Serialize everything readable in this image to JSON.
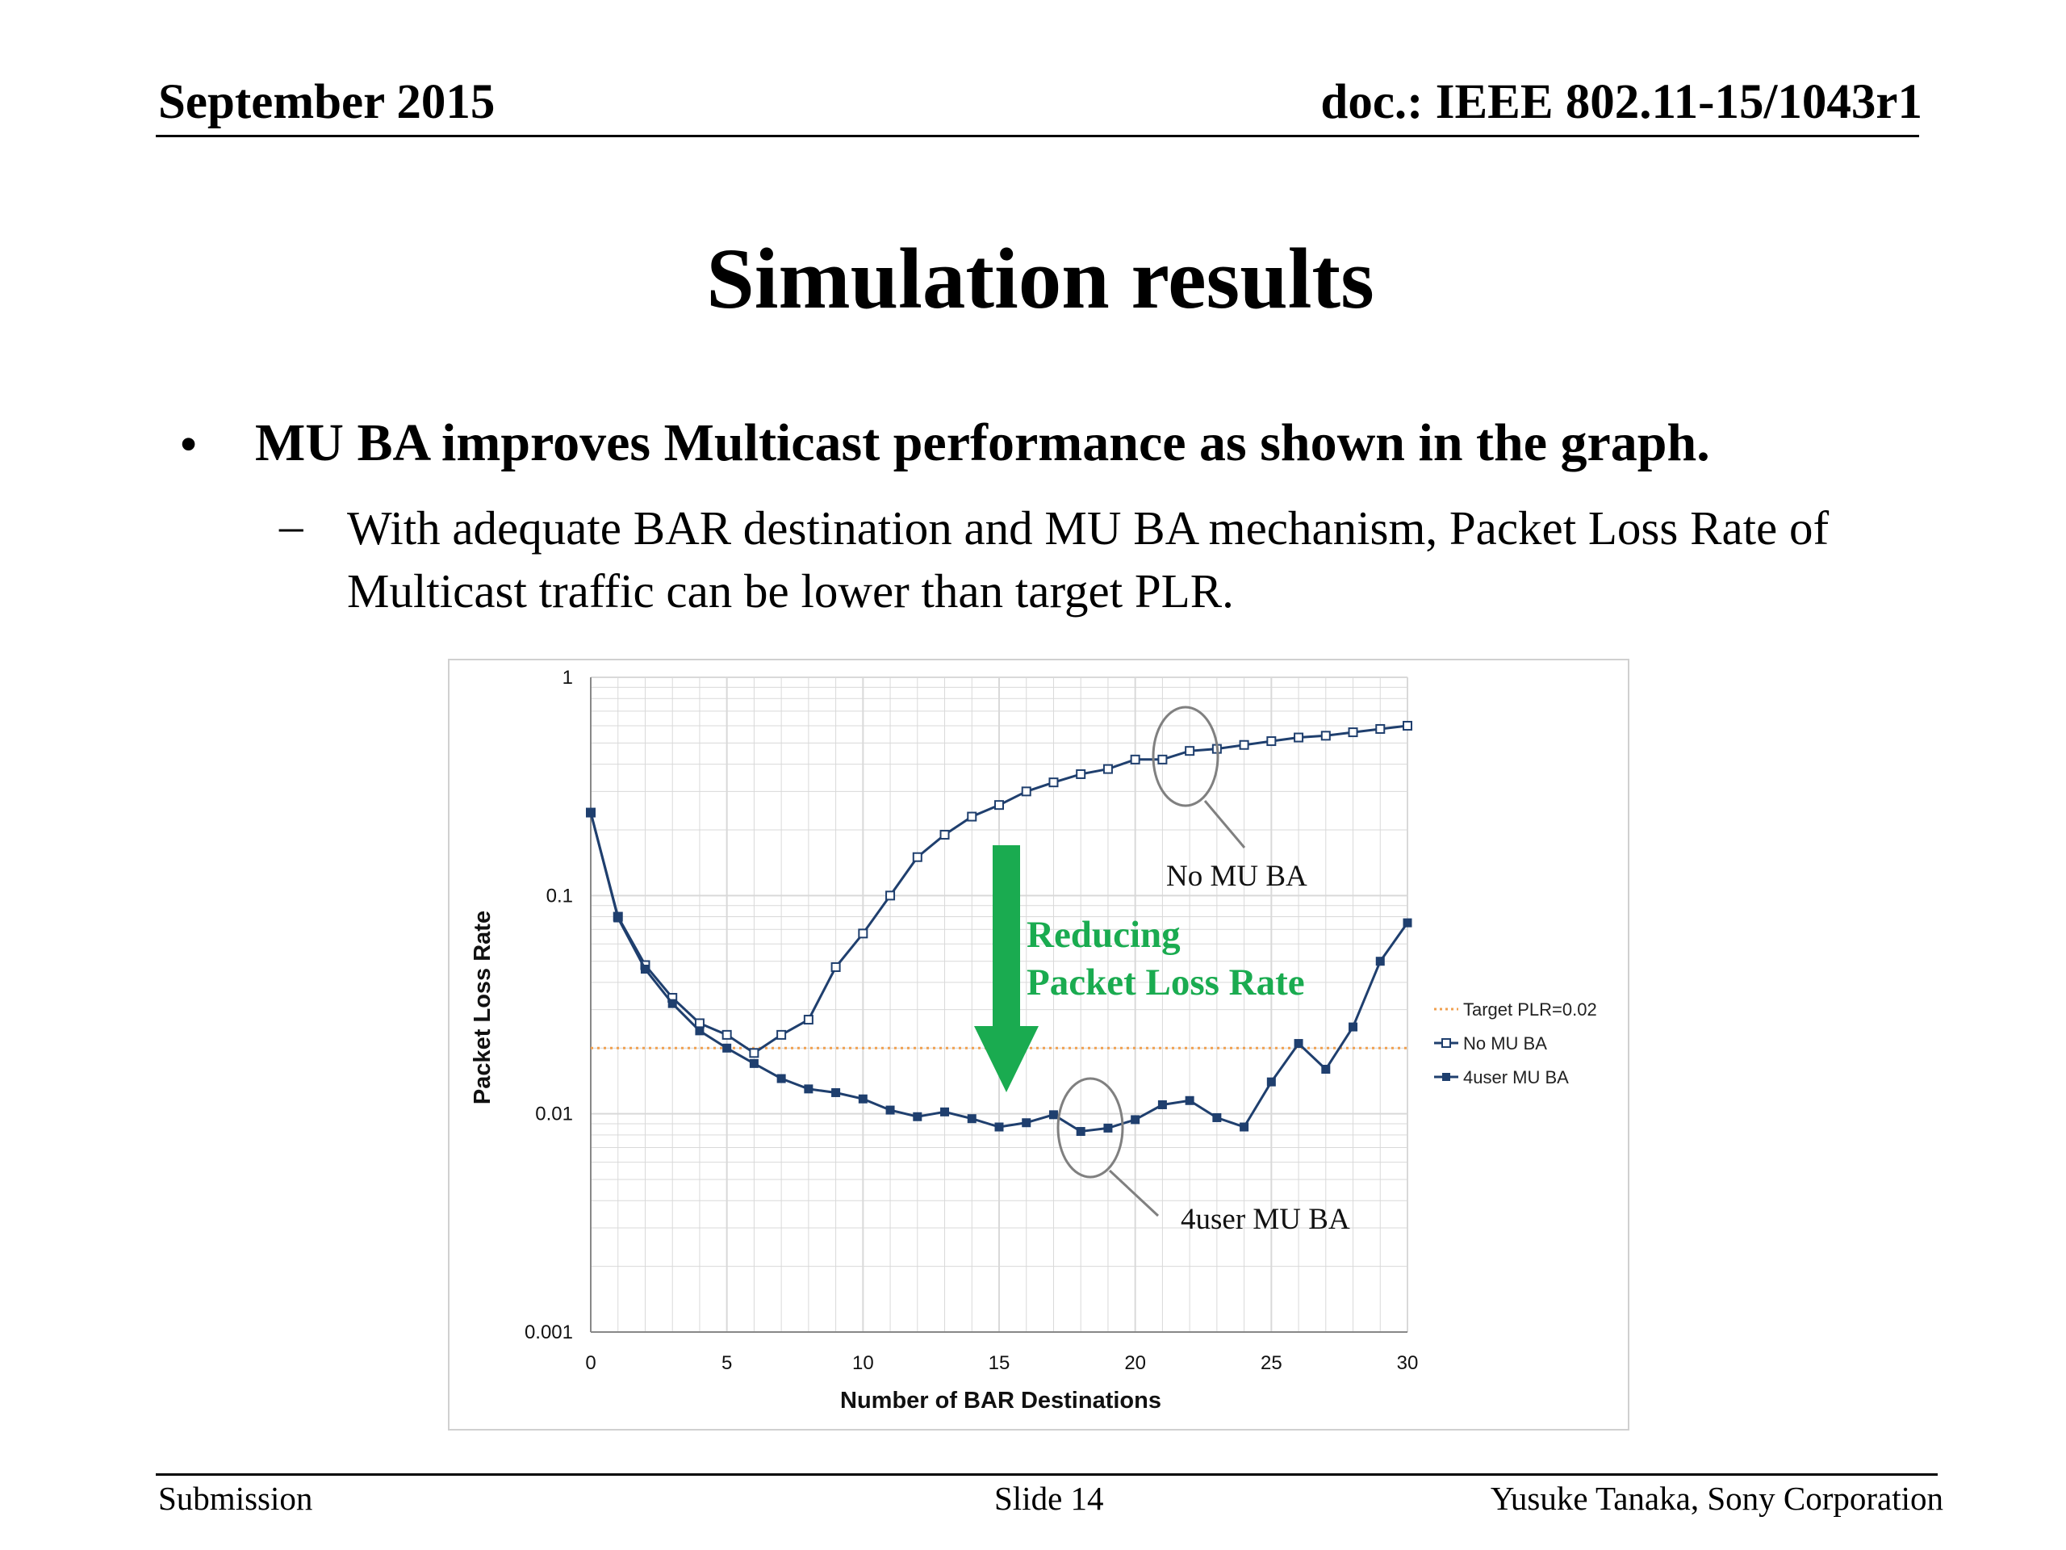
{
  "header": {
    "date": "September 2015",
    "doc_id": "doc.: IEEE 802.11-15/1043r1"
  },
  "slide_title": "Simulation results",
  "bullets": {
    "main": "MU BA improves Multicast performance as shown in the graph.",
    "sub": "With adequate BAR destination and MU BA mechanism, Packet Loss Rate of Multicast traffic can be lower than target PLR."
  },
  "footer": {
    "left": "Submission",
    "center": "Slide 14",
    "right": "Yusuke Tanaka, Sony Corporation"
  },
  "colors": {
    "series": "#1f3f6e",
    "target": "#f0a050",
    "arrow": "#1aab50",
    "grid": "#d9d9d9",
    "callout": "#808080"
  },
  "chart_data": {
    "type": "line",
    "xlabel": "Number of BAR Destinations",
    "ylabel": "Packet Loss Rate",
    "xlim": [
      0,
      30
    ],
    "ylim": [
      0.001,
      1
    ],
    "yscale": "log",
    "xticks": [
      0,
      5,
      10,
      15,
      20,
      25,
      30
    ],
    "yticks": [
      {
        "value": 0.001,
        "label": "0.001"
      },
      {
        "value": 0.01,
        "label": "0.01"
      },
      {
        "value": 0.1,
        "label": "0.1"
      },
      {
        "value": 1,
        "label": "1"
      }
    ],
    "grid": true,
    "legend_position": "right",
    "x": [
      0,
      1,
      2,
      3,
      4,
      5,
      6,
      7,
      8,
      9,
      10,
      11,
      12,
      13,
      14,
      15,
      16,
      17,
      18,
      19,
      20,
      21,
      22,
      23,
      24,
      25,
      26,
      27,
      28,
      29,
      30
    ],
    "series": [
      {
        "name": "Target PLR=0.02",
        "style": "dotted",
        "marker": "none",
        "values": [
          0.02,
          0.02,
          0.02,
          0.02,
          0.02,
          0.02,
          0.02,
          0.02,
          0.02,
          0.02,
          0.02,
          0.02,
          0.02,
          0.02,
          0.02,
          0.02,
          0.02,
          0.02,
          0.02,
          0.02,
          0.02,
          0.02,
          0.02,
          0.02,
          0.02,
          0.02,
          0.02,
          0.02,
          0.02,
          0.02,
          0.02
        ]
      },
      {
        "name": "No MU BA",
        "style": "solid",
        "marker": "hollow-square",
        "values": [
          0.24,
          0.08,
          0.048,
          0.034,
          0.026,
          0.023,
          0.019,
          0.023,
          0.027,
          0.047,
          0.067,
          0.1,
          0.15,
          0.19,
          0.23,
          0.26,
          0.3,
          0.33,
          0.36,
          0.38,
          0.42,
          0.42,
          0.46,
          0.47,
          0.49,
          0.51,
          0.53,
          0.54,
          0.56,
          0.58,
          0.6
        ]
      },
      {
        "name": "4user MU BA",
        "style": "solid",
        "marker": "filled-square",
        "values": [
          0.24,
          0.079,
          0.046,
          0.032,
          0.024,
          0.02,
          0.017,
          0.0145,
          0.013,
          0.0125,
          0.0117,
          0.0104,
          0.0097,
          0.0102,
          0.0095,
          0.0087,
          0.0091,
          0.0099,
          0.0083,
          0.0086,
          0.0094,
          0.011,
          0.0115,
          0.0096,
          0.0087,
          0.014,
          0.021,
          0.016,
          0.025,
          0.05,
          0.075
        ]
      }
    ],
    "annotations": [
      {
        "text": "No MU BA"
      },
      {
        "text": "4user MU BA"
      },
      {
        "text": "Reducing"
      },
      {
        "text": "Packet Loss Rate"
      }
    ]
  }
}
